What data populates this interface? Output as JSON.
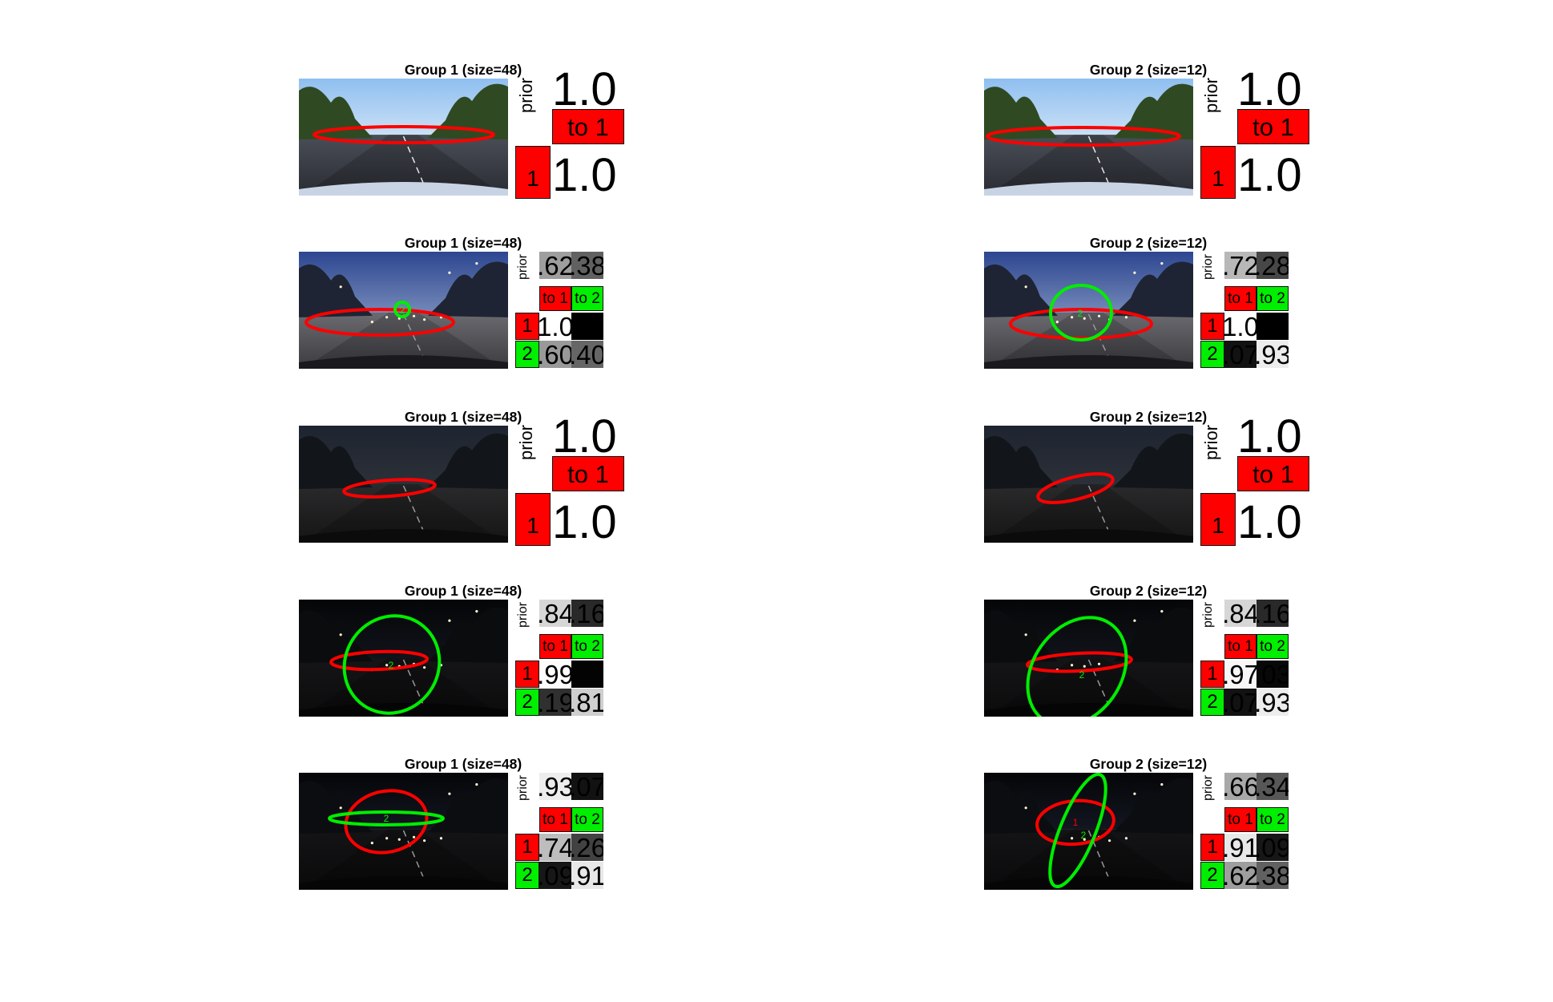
{
  "colors": {
    "state1": "#ff0000",
    "state2": "#00ee00",
    "background": "#ffffff"
  },
  "panels": [
    {
      "title": "Group 1 (size=48)",
      "scene": "day",
      "n": 1,
      "prior_label": "prior",
      "prior": [
        "1.0"
      ],
      "prior_shade": [
        1.0
      ],
      "col_headers": [
        "to 1"
      ],
      "row_labels": [
        "1"
      ],
      "transition": [
        [
          "1.0"
        ]
      ],
      "transition_shade": [
        [
          1.0
        ]
      ],
      "ellipses": []
    },
    {
      "title": "Group 2 (size=12)",
      "scene": "day",
      "n": 1,
      "prior_label": "prior",
      "prior": [
        "1.0"
      ],
      "prior_shade": [
        1.0
      ],
      "col_headers": [
        "to 1"
      ],
      "row_labels": [
        "1"
      ],
      "transition": [
        [
          "1.0"
        ]
      ],
      "transition_shade": [
        [
          1.0
        ]
      ],
      "ellipses": []
    },
    {
      "title": "Group 1 (size=48)",
      "scene": "dusk",
      "n": 2,
      "prior_label": "prior",
      "prior": [
        ".62",
        ".38"
      ],
      "prior_shade": [
        0.62,
        0.38
      ],
      "col_headers": [
        "to 1",
        "to 2"
      ],
      "row_labels": [
        "1",
        "2"
      ],
      "transition": [
        [
          "1.0",
          ""
        ],
        [
          ".60",
          ".40"
        ]
      ],
      "transition_shade": [
        [
          1.0,
          0.0
        ],
        [
          0.6,
          0.4
        ]
      ],
      "ellipses": []
    },
    {
      "title": "Group 2 (size=12)",
      "scene": "dusk",
      "n": 2,
      "prior_label": "prior",
      "prior": [
        ".72",
        ".28"
      ],
      "prior_shade": [
        0.72,
        0.28
      ],
      "col_headers": [
        "to 1",
        "to 2"
      ],
      "row_labels": [
        "1",
        "2"
      ],
      "transition": [
        [
          "1.0",
          ""
        ],
        [
          ".07",
          ".93"
        ]
      ],
      "transition_shade": [
        [
          1.0,
          0.0
        ],
        [
          0.07,
          0.93
        ]
      ],
      "ellipses": []
    },
    {
      "title": "Group 1 (size=48)",
      "scene": "forest",
      "n": 1,
      "prior_label": "prior",
      "prior": [
        "1.0"
      ],
      "prior_shade": [
        1.0
      ],
      "col_headers": [
        "to 1"
      ],
      "row_labels": [
        "1"
      ],
      "transition": [
        [
          "1.0"
        ]
      ],
      "transition_shade": [
        [
          1.0
        ]
      ],
      "ellipses": []
    },
    {
      "title": "Group 2 (size=12)",
      "scene": "forest",
      "n": 1,
      "prior_label": "prior",
      "prior": [
        "1.0"
      ],
      "prior_shade": [
        1.0
      ],
      "col_headers": [
        "to 1"
      ],
      "row_labels": [
        "1"
      ],
      "transition": [
        [
          "1.0"
        ]
      ],
      "transition_shade": [
        [
          1.0
        ]
      ],
      "ellipses": []
    },
    {
      "title": "Group 1 (size=48)",
      "scene": "night",
      "n": 2,
      "prior_label": "prior",
      "prior": [
        ".84",
        ".16"
      ],
      "prior_shade": [
        0.84,
        0.16
      ],
      "col_headers": [
        "to 1",
        "to 2"
      ],
      "row_labels": [
        "1",
        "2"
      ],
      "transition": [
        [
          ".99",
          ""
        ],
        [
          ".19",
          ".81"
        ]
      ],
      "transition_shade": [
        [
          0.99,
          0.01
        ],
        [
          0.19,
          0.81
        ]
      ],
      "ellipses": []
    },
    {
      "title": "Group 2 (size=12)",
      "scene": "night",
      "n": 2,
      "prior_label": "prior",
      "prior": [
        ".84",
        ".16"
      ],
      "prior_shade": [
        0.84,
        0.16
      ],
      "col_headers": [
        "to 1",
        "to 2"
      ],
      "row_labels": [
        "1",
        "2"
      ],
      "transition": [
        [
          ".97",
          ".03"
        ],
        [
          ".07",
          ".93"
        ]
      ],
      "transition_shade": [
        [
          0.97,
          0.03
        ],
        [
          0.07,
          0.93
        ]
      ],
      "ellipses": []
    },
    {
      "title": "Group 1 (size=48)",
      "scene": "city",
      "n": 2,
      "prior_label": "prior",
      "prior": [
        ".93",
        ".07"
      ],
      "prior_shade": [
        0.93,
        0.07
      ],
      "col_headers": [
        "to 1",
        "to 2"
      ],
      "row_labels": [
        "1",
        "2"
      ],
      "transition": [
        [
          ".74",
          ".26"
        ],
        [
          ".09",
          ".91"
        ]
      ],
      "transition_shade": [
        [
          0.74,
          0.26
        ],
        [
          0.09,
          0.91
        ]
      ],
      "ellipses": []
    },
    {
      "title": "Group 2 (size=12)",
      "scene": "city",
      "n": 2,
      "prior_label": "prior",
      "prior": [
        ".66",
        ".34"
      ],
      "prior_shade": [
        0.66,
        0.34
      ],
      "col_headers": [
        "to 1",
        "to 2"
      ],
      "row_labels": [
        "1",
        "2"
      ],
      "transition": [
        [
          ".91",
          ".09"
        ],
        [
          ".62",
          ".38"
        ]
      ],
      "transition_shade": [
        [
          0.91,
          0.09
        ],
        [
          0.62,
          0.38
        ]
      ],
      "ellipses": []
    }
  ]
}
